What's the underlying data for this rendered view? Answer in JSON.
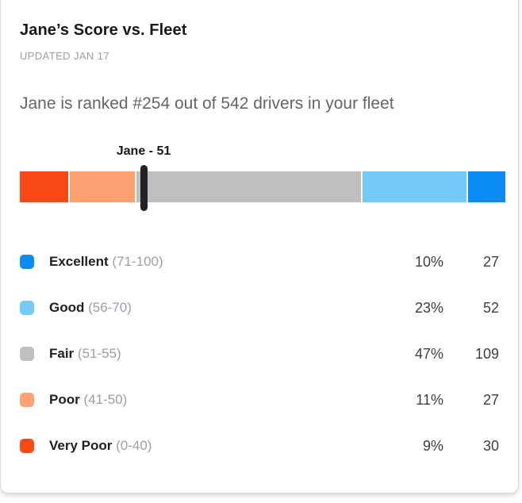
{
  "header": {
    "title": "Jane’s Score vs. Fleet",
    "updated": "UPDATED JAN 17",
    "rank_text": "Jane is ranked #254 out of 542 drivers in your fleet"
  },
  "chart_data": {
    "type": "bar",
    "title": "Jane’s Score vs. Fleet",
    "subtitle": "Jane is ranked #254 out of 542 drivers in your fleet",
    "jane_rank": 254,
    "total_drivers": 542,
    "marker": {
      "label": "Jane - 51",
      "driver": "Jane",
      "score": 51,
      "position_pct": 25.8
    },
    "categories": [
      "Excellent",
      "Good",
      "Fair",
      "Poor",
      "Very Poor"
    ],
    "ranges": [
      "71-100",
      "56-70",
      "51-55",
      "41-50",
      "0-40"
    ],
    "percents": [
      10,
      23,
      47,
      11,
      9
    ],
    "counts": [
      27,
      52,
      109,
      27,
      30
    ],
    "segments_left_to_right": [
      {
        "name": "Very Poor",
        "width_pct": 10.1,
        "color": "#f94a16"
      },
      {
        "name": "Poor",
        "width_pct": 13.6,
        "color": "#fba172"
      },
      {
        "name": "Fair",
        "width_pct": 46.9,
        "color": "#bfbfbf"
      },
      {
        "name": "Good",
        "width_pct": 21.6,
        "color": "#74caf8"
      },
      {
        "name": "Excellent",
        "width_pct": 7.8,
        "color": "#0b8cf5"
      }
    ],
    "colors": {
      "excellent": "#0b8cf5",
      "good": "#74caf8",
      "fair": "#bfbfbf",
      "poor": "#fba172",
      "very_poor": "#f94a16",
      "marker": "#222326"
    },
    "legend_position": "below",
    "grid": false
  },
  "legend": {
    "rows": [
      {
        "name": "Excellent",
        "range_display": "(71-100)",
        "percent": "10%",
        "count": "27",
        "color": "#0b8cf5"
      },
      {
        "name": "Good",
        "range_display": "(56-70)",
        "percent": "23%",
        "count": "52",
        "color": "#74caf8"
      },
      {
        "name": "Fair",
        "range_display": "(51-55)",
        "percent": "47%",
        "count": "109",
        "color": "#bfbfbf"
      },
      {
        "name": "Poor",
        "range_display": "(41-50)",
        "percent": "11%",
        "count": "27",
        "color": "#fba172"
      },
      {
        "name": "Very Poor",
        "range_display": "(0-40)",
        "percent": "9%",
        "count": "30",
        "color": "#f94a16"
      }
    ]
  }
}
